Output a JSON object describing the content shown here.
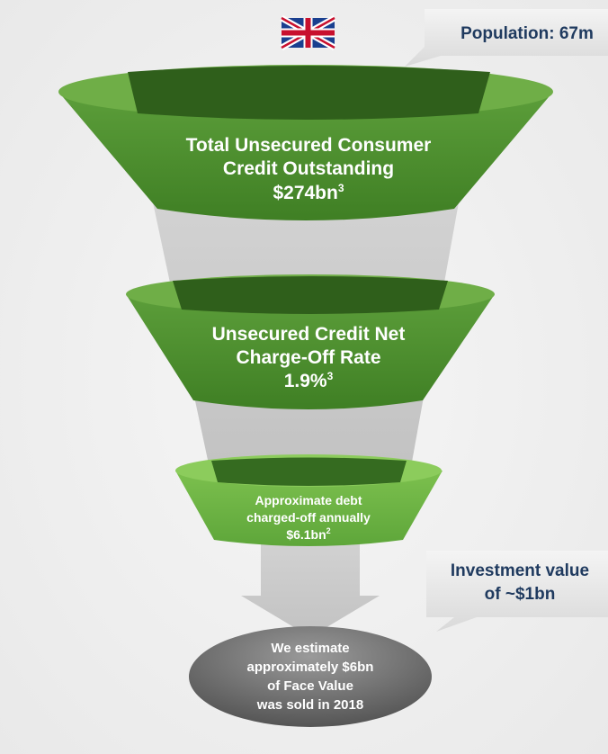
{
  "callouts": {
    "population": "Population: 67m",
    "investment": [
      "Investment value",
      "of ~$1bn"
    ]
  },
  "stages": [
    {
      "lines": [
        "Total Unsecured Consumer",
        "Credit Outstanding"
      ],
      "value": "$274bn",
      "note": "3"
    },
    {
      "lines": [
        "Unsecured Credit Net",
        "Charge-Off Rate"
      ],
      "value": "1.9%",
      "note": "3"
    },
    {
      "lines": [
        "Approximate debt",
        "charged-off annually"
      ],
      "value": "$6.1bn",
      "note": "2"
    }
  ],
  "result": {
    "lines": [
      "We estimate",
      "approximately $6bn",
      "of Face Value",
      "was sold in 2018"
    ]
  }
}
